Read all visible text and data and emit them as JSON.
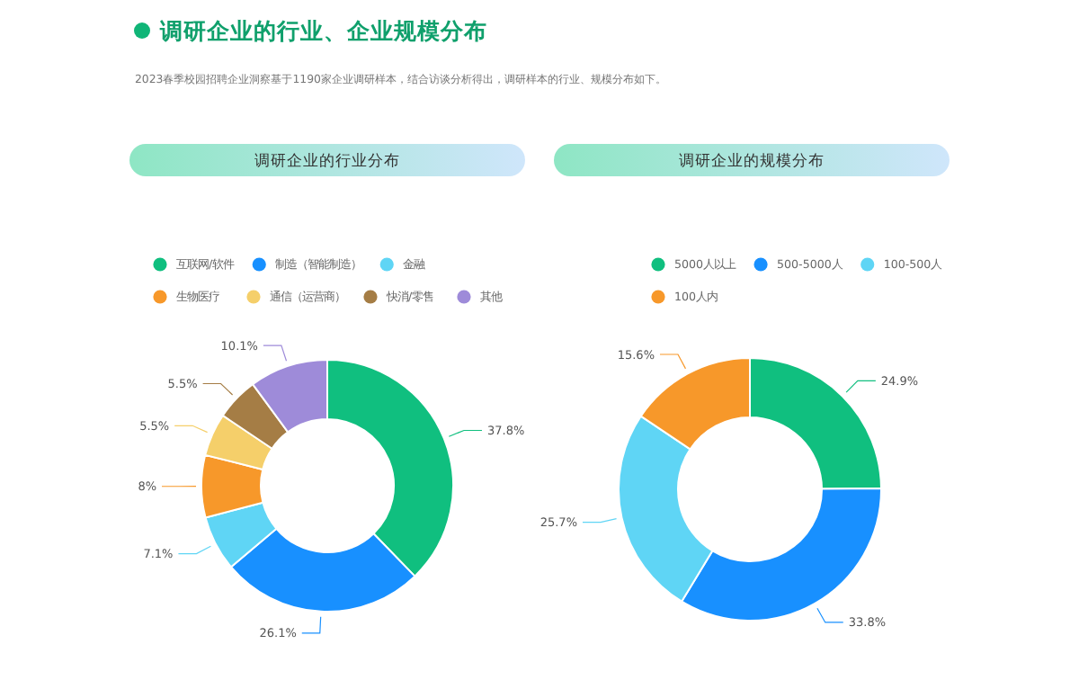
{
  "chart_data": [
    {
      "type": "donut",
      "title": "调研企业的行业分布",
      "annotations": [
        "调研企业的行业、企业规模分布",
        "2023春季校园招聘企业洞察基于1190家企业调研样本，结合访谈分析得出，调研样本的行业、规模分布如下。"
      ],
      "legend": "top",
      "categories": [
        "互联网/软件",
        "制造（智能制造）",
        "金融",
        "生物医疗",
        "通信（运营商）",
        "快消/零售",
        "其他"
      ],
      "values": [
        37.8,
        26.1,
        7.1,
        8,
        5.5,
        5.5,
        10.1
      ],
      "value_labels": [
        "37.8%",
        "26.1%",
        "7.1%",
        "8%",
        "5.5%",
        "5.5%",
        "10.1%"
      ],
      "colors": [
        "#10bf7f",
        "#1890ff",
        "#5fd5f5",
        "#f7982a",
        "#f5cf6a",
        "#a57d45",
        "#9e8bd9"
      ]
    },
    {
      "type": "donut",
      "title": "调研企业的规模分布",
      "legend": "top",
      "categories": [
        "5000人以上",
        "500-5000人",
        "100-500人",
        "100人内"
      ],
      "values": [
        24.9,
        33.8,
        25.7,
        15.6
      ],
      "value_labels": [
        "24.9%",
        "33.8%",
        "25.7%",
        "15.6%"
      ],
      "colors": [
        "#10bf7f",
        "#1890ff",
        "#5fd5f5",
        "#f7982a"
      ]
    }
  ]
}
